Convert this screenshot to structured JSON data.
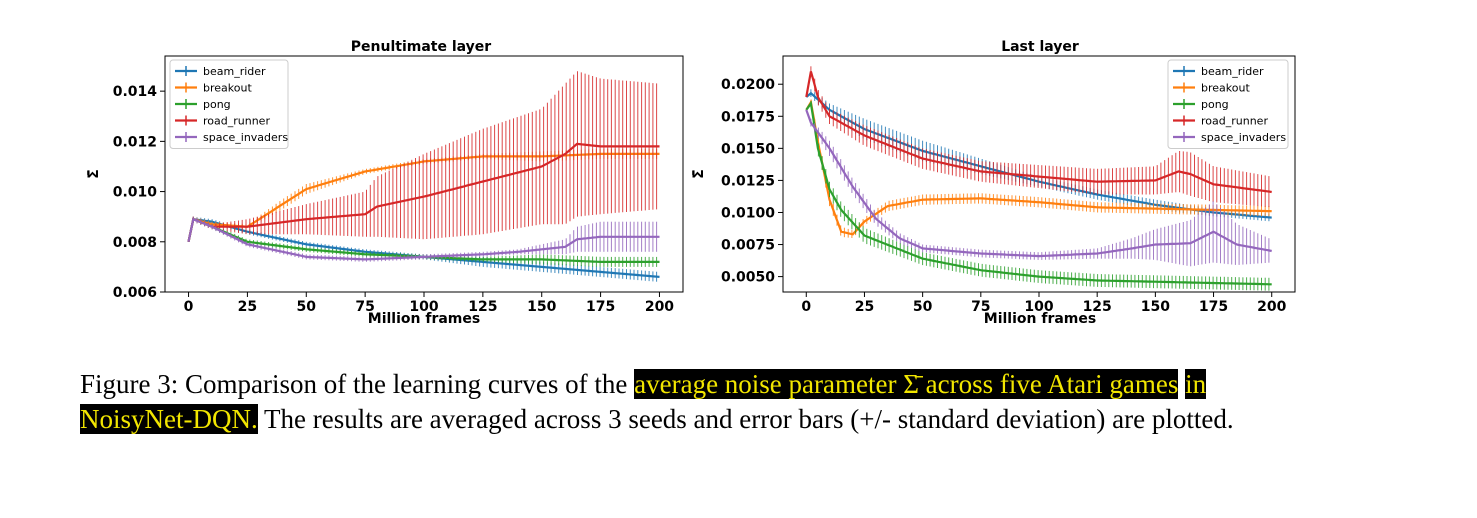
{
  "chart_data": [
    {
      "type": "line",
      "title": "Penultimate layer",
      "xlabel": "Million frames",
      "ylabel": "Σ̄",
      "xlim": [
        -10,
        210
      ],
      "ylim": [
        0.006,
        0.0154
      ],
      "xticks": [
        0,
        25,
        50,
        75,
        100,
        125,
        150,
        175,
        200
      ],
      "xtick_labels": [
        "0",
        "25",
        "50",
        "75",
        "100",
        "125",
        "150",
        "175",
        "200"
      ],
      "yticks": [
        0.006,
        0.008,
        0.01,
        0.012,
        0.014
      ],
      "ytick_labels": [
        "0.006",
        "0.008",
        "0.010",
        "0.012",
        "0.014"
      ],
      "legend_position": "top-left",
      "series": [
        {
          "name": "beam_rider",
          "color": "#1f77b4",
          "x": [
            0,
            2,
            10,
            25,
            50,
            75,
            100,
            125,
            150,
            175,
            200
          ],
          "y": [
            0.008,
            0.0089,
            0.0088,
            0.0084,
            0.0079,
            0.0076,
            0.0074,
            0.0072,
            0.007,
            0.0068,
            0.0066
          ],
          "err": [
            0,
            0.0001,
            0.0001,
            0.0001,
            0.0001,
            0.0001,
            0.0001,
            0.0002,
            0.0002,
            0.0002,
            0.0002
          ]
        },
        {
          "name": "breakout",
          "color": "#ff7f0e",
          "x": [
            0,
            2,
            10,
            25,
            40,
            50,
            75,
            100,
            125,
            150,
            175,
            200
          ],
          "y": [
            0.008,
            0.0089,
            0.0087,
            0.0086,
            0.0095,
            0.0101,
            0.0108,
            0.0112,
            0.0114,
            0.0114,
            0.0115,
            0.0115
          ],
          "err": [
            0,
            0.0001,
            0.0001,
            0.0001,
            0.0002,
            0.0002,
            0.0001,
            0.0001,
            0.0001,
            0.0002,
            0.0002,
            0.0002
          ]
        },
        {
          "name": "pong",
          "color": "#2ca02c",
          "x": [
            0,
            2,
            10,
            25,
            50,
            75,
            100,
            125,
            150,
            175,
            200
          ],
          "y": [
            0.008,
            0.0089,
            0.0086,
            0.008,
            0.0077,
            0.0075,
            0.0074,
            0.0073,
            0.0073,
            0.0072,
            0.0072
          ],
          "err": [
            0,
            0.0001,
            0.0001,
            0.0001,
            0.0001,
            0.0001,
            0.0001,
            0.0001,
            0.0002,
            0.0002,
            0.0002
          ]
        },
        {
          "name": "road_runner",
          "color": "#d62728",
          "x": [
            0,
            2,
            10,
            25,
            50,
            75,
            80,
            100,
            125,
            150,
            160,
            165,
            175,
            200
          ],
          "y": [
            0.008,
            0.0089,
            0.0086,
            0.0086,
            0.0089,
            0.0091,
            0.0094,
            0.0098,
            0.0104,
            0.011,
            0.0115,
            0.0119,
            0.0118,
            0.0118
          ],
          "err": [
            0,
            0.0001,
            0.0001,
            0.0003,
            0.0006,
            0.0009,
            0.0012,
            0.0017,
            0.0021,
            0.0023,
            0.0028,
            0.0029,
            0.0027,
            0.0025
          ]
        },
        {
          "name": "space_invaders",
          "color": "#9467bd",
          "x": [
            0,
            2,
            10,
            25,
            50,
            75,
            100,
            125,
            140,
            150,
            160,
            165,
            175,
            200
          ],
          "y": [
            0.008,
            0.0089,
            0.0086,
            0.0079,
            0.0074,
            0.0073,
            0.0074,
            0.0075,
            0.0076,
            0.0077,
            0.0078,
            0.0081,
            0.0082,
            0.0082
          ],
          "err": [
            0,
            0.0001,
            0.0001,
            0.0001,
            0.0001,
            0.0001,
            0.0001,
            0.0001,
            0.0001,
            0.0002,
            0.0003,
            0.0005,
            0.0006,
            0.0006
          ]
        }
      ]
    },
    {
      "type": "line",
      "title": "Last layer",
      "xlabel": "Million frames",
      "ylabel": "Σ̄",
      "xlim": [
        -10,
        210
      ],
      "ylim": [
        0.0038,
        0.0222
      ],
      "xticks": [
        0,
        25,
        50,
        75,
        100,
        125,
        150,
        175,
        200
      ],
      "xtick_labels": [
        "0",
        "25",
        "50",
        "75",
        "100",
        "125",
        "150",
        "175",
        "200"
      ],
      "yticks": [
        0.005,
        0.0075,
        0.01,
        0.0125,
        0.015,
        0.0175,
        0.02
      ],
      "ytick_labels": [
        "0.0050",
        "0.0075",
        "0.0100",
        "0.0125",
        "0.0150",
        "0.0175",
        "0.0200"
      ],
      "legend_position": "top-right",
      "series": [
        {
          "name": "beam_rider",
          "color": "#1f77b4",
          "x": [
            0,
            2,
            10,
            25,
            50,
            75,
            100,
            125,
            150,
            175,
            200
          ],
          "y": [
            0.019,
            0.0193,
            0.018,
            0.0165,
            0.0148,
            0.0136,
            0.0124,
            0.0114,
            0.0106,
            0.01,
            0.0096
          ],
          "err": [
            0,
            0.0003,
            0.0005,
            0.0008,
            0.0008,
            0.0006,
            0.0004,
            0.0004,
            0.0004,
            0.0003,
            0.0003
          ]
        },
        {
          "name": "breakout",
          "color": "#ff7f0e",
          "x": [
            0,
            2,
            5,
            10,
            15,
            20,
            25,
            35,
            50,
            75,
            100,
            125,
            150,
            175,
            200
          ],
          "y": [
            0.018,
            0.0186,
            0.0155,
            0.011,
            0.0085,
            0.0083,
            0.0093,
            0.0105,
            0.011,
            0.0111,
            0.0108,
            0.0104,
            0.0103,
            0.0102,
            0.0101
          ],
          "err": [
            0,
            0.0002,
            0.0005,
            0.0005,
            0.0004,
            0.0003,
            0.0003,
            0.0004,
            0.0004,
            0.0004,
            0.0004,
            0.0004,
            0.0004,
            0.0004,
            0.0004
          ]
        },
        {
          "name": "pong",
          "color": "#2ca02c",
          "x": [
            0,
            2,
            5,
            10,
            15,
            25,
            50,
            75,
            100,
            125,
            150,
            175,
            200
          ],
          "y": [
            0.018,
            0.0185,
            0.015,
            0.0118,
            0.0102,
            0.0082,
            0.0064,
            0.0055,
            0.005,
            0.0047,
            0.0046,
            0.0045,
            0.0044
          ],
          "err": [
            0,
            0.0002,
            0.0005,
            0.0006,
            0.0006,
            0.0006,
            0.0005,
            0.0005,
            0.0005,
            0.0005,
            0.0005,
            0.0005,
            0.0005
          ]
        },
        {
          "name": "road_runner",
          "color": "#d62728",
          "x": [
            0,
            2,
            5,
            10,
            25,
            50,
            75,
            100,
            125,
            150,
            160,
            165,
            175,
            200
          ],
          "y": [
            0.019,
            0.021,
            0.019,
            0.0175,
            0.016,
            0.0142,
            0.0132,
            0.0128,
            0.0124,
            0.0125,
            0.0132,
            0.013,
            0.0122,
            0.0116
          ],
          "err": [
            0,
            0.0004,
            0.0006,
            0.0006,
            0.0008,
            0.0008,
            0.0008,
            0.0009,
            0.001,
            0.0011,
            0.0016,
            0.0017,
            0.0014,
            0.0012
          ]
        },
        {
          "name": "space_invaders",
          "color": "#9467bd",
          "x": [
            0,
            2,
            10,
            20,
            30,
            40,
            50,
            75,
            100,
            125,
            140,
            150,
            165,
            175,
            185,
            200
          ],
          "y": [
            0.018,
            0.017,
            0.015,
            0.012,
            0.0095,
            0.008,
            0.0072,
            0.0068,
            0.0066,
            0.0068,
            0.0072,
            0.0075,
            0.0076,
            0.0085,
            0.0075,
            0.007
          ],
          "err": [
            0,
            0.0003,
            0.0006,
            0.0006,
            0.0005,
            0.0004,
            0.0003,
            0.0003,
            0.0003,
            0.0004,
            0.0008,
            0.0012,
            0.0018,
            0.0024,
            0.0016,
            0.0009
          ]
        }
      ]
    }
  ],
  "caption": {
    "prefix": "Figure 3: Comparison of the learning curves of the ",
    "highlight_1": "average noise parameter Σ̄ across five Atari games",
    "highlight_2": "in NoisyNet-DQN.",
    "suffix": " The results are averaged across 3 seeds and error bars (+/- standard deviation) are plotted."
  }
}
